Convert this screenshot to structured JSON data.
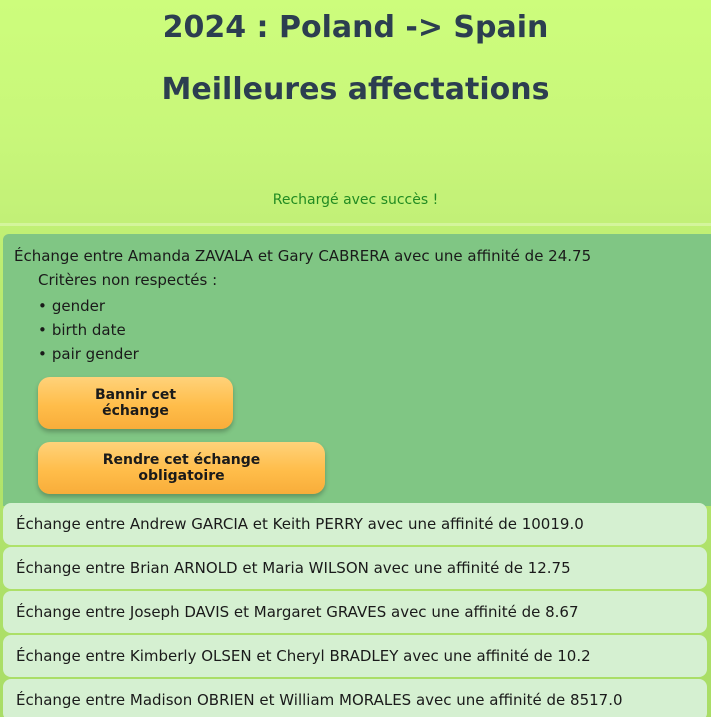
{
  "header": {
    "title_line1": "2024 : Poland -> Spain",
    "title_line2": "Meilleures affectations",
    "reload_status": "Rechargé avec succès !"
  },
  "selected_exchange": {
    "text": "Échange entre Amanda ZAVALA et Gary CABRERA avec une affinité de 24.75",
    "criteria_label": "Critères non respectés :",
    "criteria": [
      "gender",
      "birth date",
      "pair gender"
    ],
    "ban_button": "Bannir cet échange",
    "force_button": "Rendre cet échange obligatoire"
  },
  "exchanges": [
    "Échange entre Andrew GARCIA et Keith PERRY avec une affinité de 10019.0",
    "Échange entre Brian ARNOLD et Maria WILSON avec une affinité de 12.75",
    "Échange entre Joseph DAVIS et Margaret GRAVES avec une affinité de 8.67",
    "Échange entre Kimberly OLSEN et Cheryl BRADLEY avec une affinité de 10.2",
    "Échange entre Madison OBRIEN et William MORALES avec une affinité de 8517.0"
  ],
  "colors": {
    "title": "#2c3e50",
    "success": "#228b22",
    "selected_bg": "#80c684",
    "row_bg": "#d5f0d1",
    "button": "#ffbd4a"
  }
}
